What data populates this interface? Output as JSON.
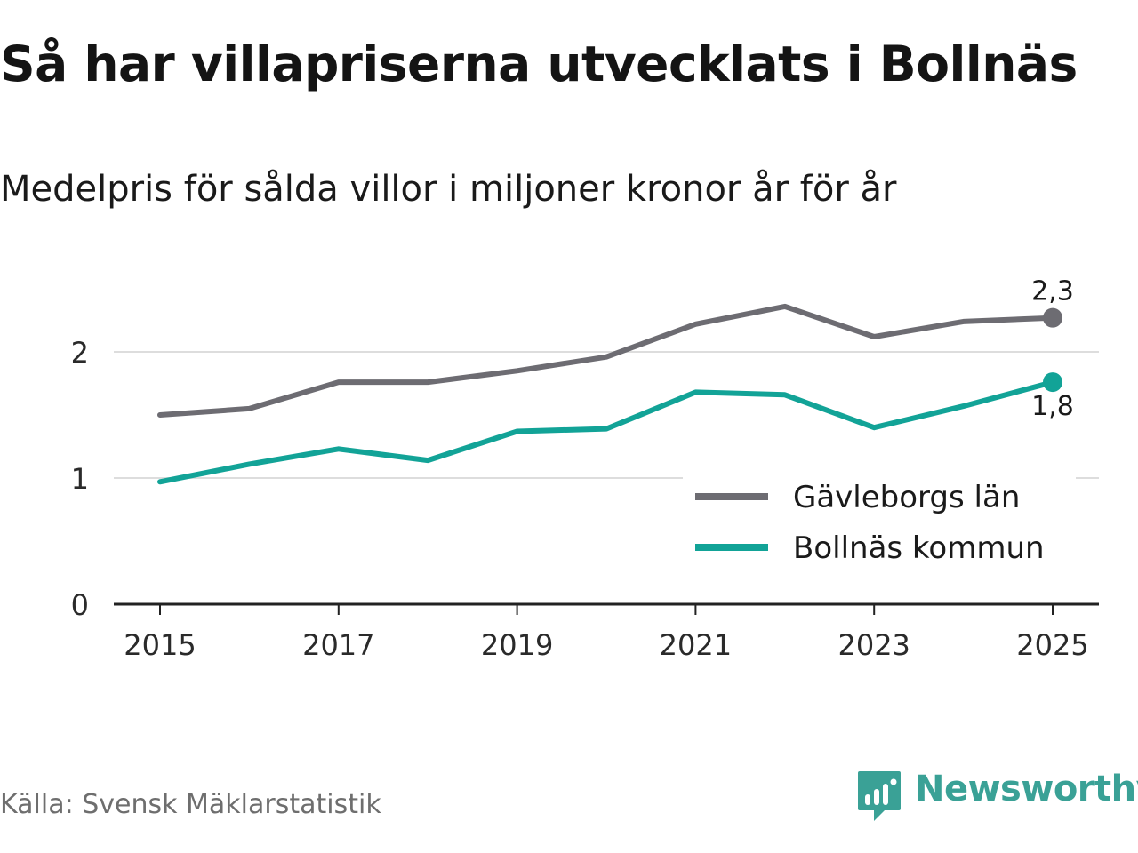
{
  "title": "Så har villapriserna utvecklats i Bollnäs",
  "subtitle": "Medelpris för sålda villor i miljoner kronor år för år",
  "source": "Källa: Svensk Mäklarstatistik",
  "brand": "Newsworthy",
  "colors": {
    "lan": "#6d6c72",
    "kommun": "#12a397",
    "axis": "#222222",
    "grid": "#dddddd",
    "brand": "#3aa196"
  },
  "chart_data": {
    "type": "line",
    "x": [
      2015,
      2016,
      2017,
      2018,
      2019,
      2020,
      2021,
      2022,
      2023,
      2024,
      2025
    ],
    "x_tick_labels": [
      "2015",
      "2017",
      "2019",
      "2021",
      "2023",
      "2025"
    ],
    "y_tick_labels": [
      "0",
      "1",
      "2"
    ],
    "y_ticks": [
      0,
      1,
      2
    ],
    "ylim": [
      0,
      2.5
    ],
    "xlabel": "",
    "ylabel": "",
    "grid": true,
    "legend_position": "bottom-right",
    "series": [
      {
        "name": "Gävleborgs län",
        "key": "lan",
        "values": [
          1.5,
          1.55,
          1.76,
          1.76,
          1.85,
          1.96,
          2.22,
          2.36,
          2.12,
          2.24,
          2.27
        ],
        "end_label": "2,3"
      },
      {
        "name": "Bollnäs kommun",
        "key": "kommun",
        "values": [
          0.97,
          1.11,
          1.23,
          1.14,
          1.37,
          1.39,
          1.68,
          1.66,
          1.4,
          1.57,
          1.76
        ],
        "end_label": "1,8"
      }
    ]
  }
}
